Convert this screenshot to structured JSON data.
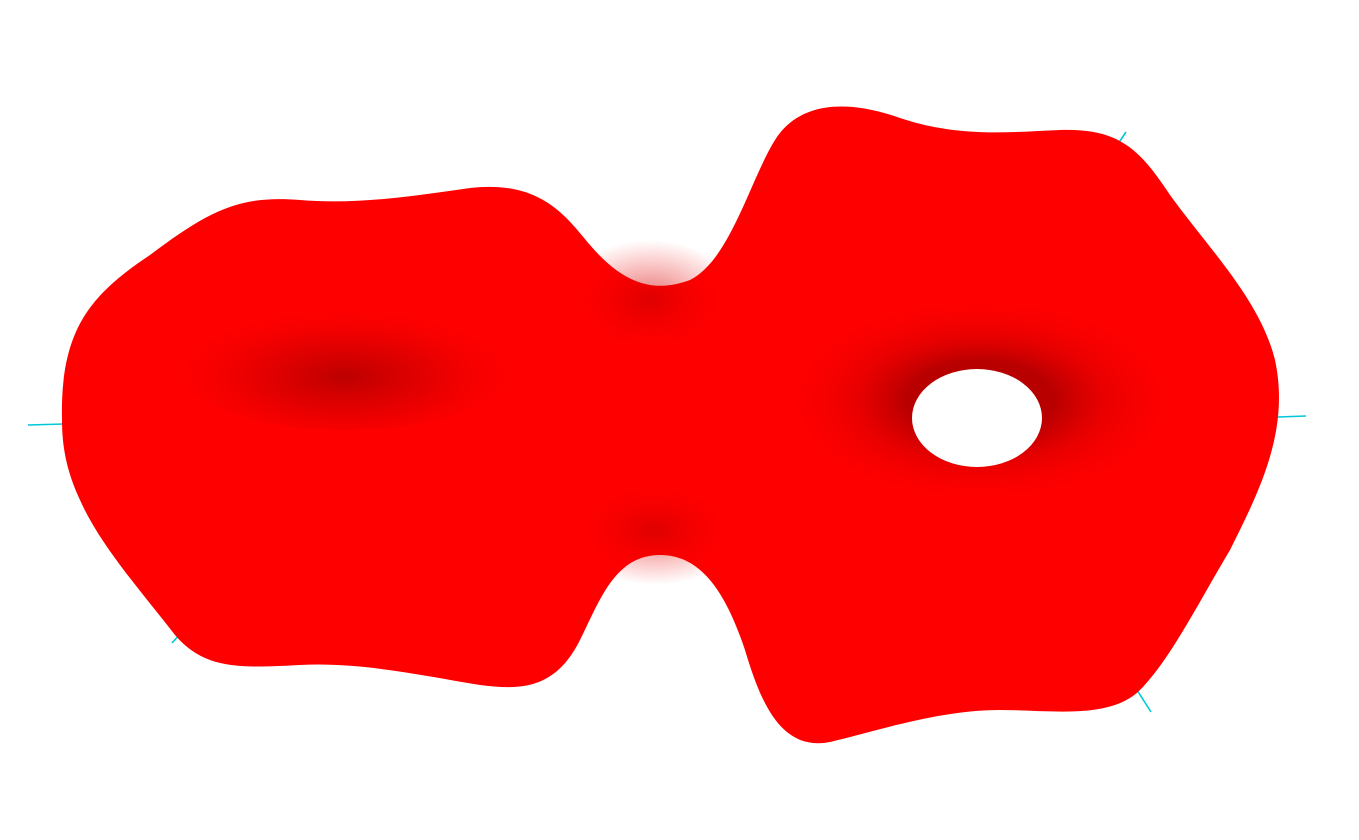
{
  "scene": {
    "background_color": "#ffffff",
    "surface_color": "#ff0000",
    "surface_shadow_color": "#b80000",
    "axis_color": "#00c8d8",
    "hole_color": "#ffffff"
  }
}
